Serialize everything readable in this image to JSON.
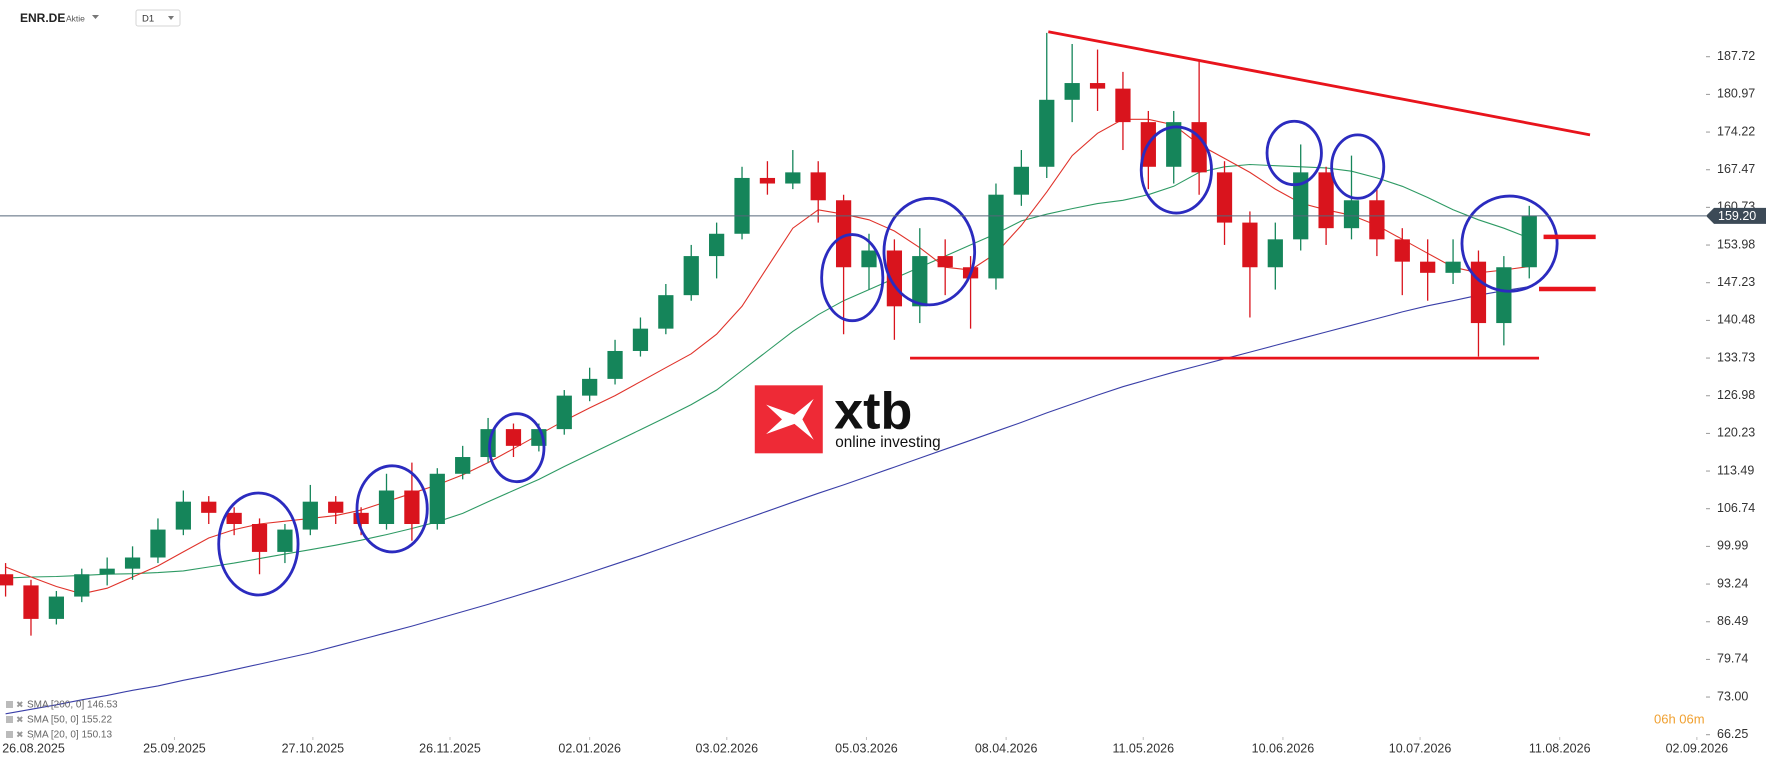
{
  "header": {
    "symbol": "ENR.DE",
    "kind": "Aktie",
    "timeframe": "D1"
  },
  "logo": {
    "brand": "xtb",
    "tagline": "online investing"
  },
  "countdown": "06h 06m",
  "chart_data": {
    "type": "candlestick",
    "up_color": "#15855a",
    "down_color": "#d9141d",
    "candles": {
      "open": [
        95,
        93,
        87,
        91,
        95,
        96,
        98,
        103,
        108,
        106,
        104,
        99,
        103,
        108,
        106,
        104,
        110,
        104,
        113,
        116,
        121,
        118,
        121,
        127,
        130,
        135,
        139,
        145,
        152,
        156,
        166,
        165,
        167,
        162,
        150,
        153,
        143,
        152,
        150,
        148,
        163,
        168,
        180,
        183,
        182,
        176,
        168,
        176,
        167,
        158,
        150,
        155,
        167,
        157,
        162,
        155,
        151,
        149,
        151,
        140,
        150
      ],
      "high": [
        97,
        94,
        92,
        96,
        98,
        100,
        105,
        110,
        109,
        107,
        105,
        104,
        111,
        109,
        107,
        113,
        115,
        114,
        118,
        123,
        122,
        122,
        128,
        132,
        137,
        141,
        147,
        154,
        158,
        168,
        169,
        171,
        169,
        163,
        156,
        155,
        157,
        155,
        152,
        165,
        171,
        192,
        190,
        189,
        185,
        178,
        178,
        187,
        169,
        160,
        158,
        172,
        168,
        170,
        164,
        157,
        155,
        155,
        153,
        152,
        161
      ],
      "low": [
        91,
        84,
        86,
        90,
        93,
        94,
        97,
        102,
        104,
        102,
        95,
        97,
        102,
        104,
        102,
        103,
        101,
        103,
        112,
        115,
        116,
        117,
        120,
        126,
        129,
        134,
        138,
        144,
        148,
        155,
        163,
        164,
        158,
        138,
        146,
        137,
        140,
        145,
        139,
        146,
        161,
        166,
        176,
        178,
        171,
        164,
        165,
        163,
        154,
        141,
        146,
        153,
        154,
        155,
        152,
        145,
        144,
        147,
        134,
        136,
        148
      ],
      "close": [
        93,
        87,
        91,
        95,
        96,
        98,
        103,
        108,
        106,
        104,
        99,
        103,
        108,
        106,
        104,
        110,
        104,
        113,
        116,
        121,
        118,
        121,
        127,
        130,
        135,
        139,
        145,
        152,
        156,
        166,
        165,
        167,
        162,
        150,
        153,
        143,
        152,
        150,
        148,
        163,
        168,
        180,
        183,
        182,
        176,
        168,
        176,
        167,
        158,
        150,
        155,
        167,
        157,
        162,
        155,
        151,
        149,
        151,
        140,
        150,
        159.2
      ]
    },
    "series": [
      {
        "name": "SMA [200, 0] 146.53",
        "color": "#3a3fa8",
        "values": [
          70,
          70.8,
          71.6,
          72.5,
          73.3,
          74.2,
          75,
          76,
          76.9,
          77.9,
          78.9,
          79.9,
          80.9,
          82.1,
          83.3,
          84.5,
          85.7,
          87,
          88.3,
          89.6,
          91,
          92.4,
          93.8,
          95.3,
          96.8,
          98.3,
          99.9,
          101.5,
          103.1,
          104.7,
          106.3,
          107.9,
          109.5,
          111,
          112.6,
          114.2,
          115.8,
          117.4,
          119,
          120.6,
          122.2,
          123.9,
          125.5,
          127.1,
          128.6,
          129.9,
          131.2,
          132.4,
          133.6,
          134.8,
          136,
          137.2,
          138.4,
          139.6,
          140.8,
          142,
          143.1,
          144,
          145,
          145.8,
          146.53
        ]
      },
      {
        "name": "SMA [50, 0] 155.22",
        "color": "#2e9a64",
        "values": [
          94.3,
          94.5,
          94.6,
          94.8,
          95,
          95.1,
          95.3,
          95.6,
          96.3,
          97,
          97.8,
          98.6,
          99.4,
          100.2,
          101.1,
          102.1,
          103.2,
          104.4,
          105.9,
          108,
          110,
          112,
          114.3,
          116.5,
          118.7,
          120.9,
          123.1,
          125.4,
          128,
          131.5,
          135,
          138.5,
          141.5,
          144,
          146,
          148,
          150,
          152,
          154,
          156,
          158.3,
          159.5,
          160.5,
          161.4,
          162,
          163,
          164.5,
          167,
          168,
          168.4,
          168.2,
          168,
          167.8,
          167.2,
          166,
          164.5,
          162.5,
          160.3,
          158.5,
          157,
          155.22
        ]
      },
      {
        "name": "SMA [20, 0] 150.13",
        "color": "#e0332b",
        "values": [
          96.3,
          94.5,
          92.8,
          91.5,
          92.5,
          94.5,
          96.5,
          99,
          101.5,
          103,
          104,
          104.5,
          105,
          105.5,
          106.5,
          108,
          109.5,
          111,
          112.8,
          115,
          117.5,
          120,
          122.5,
          124.8,
          127,
          129.5,
          132,
          134.5,
          138,
          143,
          150,
          157,
          160.3,
          159.5,
          158.5,
          156.5,
          153.5,
          150,
          149.5,
          152.5,
          157.5,
          163.5,
          170,
          174,
          176.5,
          176.5,
          175.5,
          172,
          169.5,
          167,
          164,
          161.5,
          160.3,
          159.3,
          157.5,
          155,
          152.5,
          150,
          149,
          149.5,
          150.13
        ]
      }
    ],
    "last_price": {
      "value": 159.2,
      "label": "159.20"
    },
    "price_line_color": "#56687a",
    "xlim": [
      -0.22,
      66.96
    ],
    "xticks": [
      {
        "value": 1.1,
        "label": "26.08.2025"
      },
      {
        "value": 6.65,
        "label": "25.09.2025"
      },
      {
        "value": 12.1,
        "label": "27.10.2025"
      },
      {
        "value": 17.5,
        "label": "26.11.2025"
      },
      {
        "value": 23.0,
        "label": "02.01.2026"
      },
      {
        "value": 28.4,
        "label": "03.02.2026"
      },
      {
        "value": 33.9,
        "label": "05.03.2026"
      },
      {
        "value": 39.4,
        "label": "08.04.2026"
      },
      {
        "value": 44.8,
        "label": "11.05.2026"
      },
      {
        "value": 50.3,
        "label": "10.06.2026"
      },
      {
        "value": 55.7,
        "label": "10.07.2026"
      },
      {
        "value": 61.2,
        "label": "11.08.2026"
      },
      {
        "value": 66.6,
        "label": "02.09.2026"
      }
    ],
    "ylim": [
      65.84,
      197.88
    ],
    "yticks": [
      66.25,
      {
        "value": 73,
        "label": "73.00"
      },
      79.74,
      86.49,
      93.24,
      99.99,
      106.74,
      113.49,
      120.23,
      126.98,
      133.73,
      140.48,
      147.23,
      153.98,
      160.73,
      167.47,
      174.22,
      180.97,
      187.72
    ],
    "grid": false
  }
}
